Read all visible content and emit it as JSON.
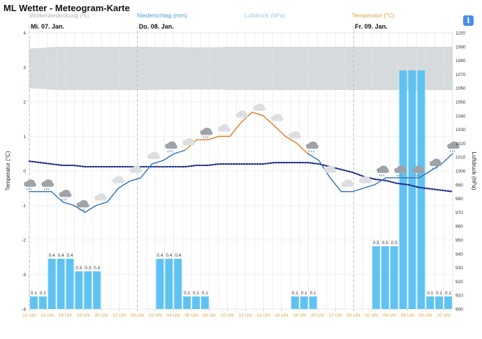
{
  "title": "ML Wetter - Meteogram-Karte",
  "info_icon": "i",
  "legend": {
    "cloud": {
      "label": "Wolkenbedeckung (%)",
      "color": "#c7cdd2"
    },
    "precip": {
      "label": "Niederschlag (mm)",
      "color": "#4a9fd9"
    },
    "pressure": {
      "label": "Luftdruck (hPa)",
      "color": "#9cc3e3"
    },
    "temp": {
      "label": "Temperatur (°C)",
      "color": "#e0a23a"
    }
  },
  "chart_data": {
    "type": "line",
    "days": [
      {
        "label": "Mi. 07. Jan.",
        "index": 0
      },
      {
        "label": "Do. 08. Jan.",
        "index": 12
      },
      {
        "label": "Fr. 09. Jan.",
        "index": 36
      }
    ],
    "x_ticks": [
      "12 Uhr",
      "14 Uhr",
      "16 Uhr",
      "18 Uhr",
      "20 Uhr",
      "22 Uhr",
      "00 Uhr",
      "02 Uhr",
      "04 Uhr",
      "06 Uhr",
      "08 Uhr",
      "10 Uhr",
      "12 Uhr",
      "14 Uhr",
      "16 Uhr",
      "18 Uhr",
      "20 Uhr",
      "22 Uhr",
      "00 Uhr",
      "02 Uhr",
      "04 Uhr",
      "06 Uhr",
      "08 Uhr",
      "10 Uhr"
    ],
    "y_left": {
      "label": "Temperatur (°C)",
      "ticks": [
        -4,
        -3,
        -2,
        -1,
        0,
        1,
        2,
        3,
        4
      ],
      "ylim": [
        -4,
        4
      ]
    },
    "y_right": {
      "label": "Luftdruck (hPa)",
      "ticks": [
        900,
        910,
        920,
        930,
        940,
        950,
        960,
        970,
        980,
        990,
        1000,
        1010,
        1020,
        1030,
        1040,
        1050,
        1060,
        1070,
        1080,
        1090,
        1100
      ],
      "ylim": [
        900,
        1100
      ]
    },
    "temperature": [
      -0.6,
      -0.6,
      -0.6,
      -0.9,
      -1.0,
      -1.2,
      -1.0,
      -0.9,
      -0.5,
      -0.3,
      -0.2,
      0.2,
      0.3,
      0.5,
      0.6,
      0.9,
      0.9,
      1.0,
      1.0,
      1.4,
      1.7,
      1.6,
      1.3,
      1.0,
      0.8,
      0.5,
      0.3,
      -0.2,
      -0.6,
      -0.6,
      -0.5,
      -0.4,
      -0.2,
      -0.2,
      -0.2,
      -0.2,
      0.0,
      0.2,
      0.5
    ],
    "pressure": [
      1007,
      1006,
      1005,
      1004,
      1004,
      1003,
      1003,
      1003,
      1003,
      1003,
      1003,
      1003,
      1003,
      1003,
      1003,
      1004,
      1004,
      1005,
      1005,
      1005,
      1005,
      1005,
      1006,
      1006,
      1006,
      1006,
      1005,
      1003,
      1001,
      999,
      996,
      994,
      993,
      991,
      990,
      988,
      987,
      986,
      985
    ],
    "precipitation": [
      0.1,
      0.1,
      0.4,
      0.4,
      0.4,
      0.3,
      0.3,
      0.3,
      0,
      0,
      0,
      0,
      0,
      0,
      0.4,
      0.4,
      0.4,
      0.1,
      0.1,
      0.1,
      0,
      0,
      0,
      0,
      0,
      0,
      0,
      0,
      0,
      0.1,
      0.1,
      0.1,
      0,
      0,
      0,
      0,
      0,
      0,
      0.5,
      0.5,
      0.5,
      1.9,
      1.9,
      1.9,
      0.1,
      0.1,
      0.1
    ],
    "precip_labels": [
      "0.1",
      "0.1",
      "0.4",
      "0.4",
      "0.4",
      "0.3",
      "0.3",
      "0.3",
      "",
      "",
      "",
      "",
      "",
      "",
      "0.4",
      "0.4",
      "0.4",
      "0.1",
      "0.1",
      "0.1",
      "",
      "",
      "",
      "",
      "",
      "",
      "",
      "",
      "",
      "0.1",
      "0.1",
      "0.1",
      "",
      "",
      "",
      "",
      "",
      "",
      "0.5",
      "0.5",
      "0.5",
      "",
      "",
      "",
      "0.1",
      "0.1",
      "0.1"
    ],
    "cloud_cover": [
      80,
      82,
      85,
      86,
      86,
      86,
      86,
      86,
      86,
      86,
      86,
      86,
      86,
      86,
      85,
      85,
      85,
      84,
      84,
      84,
      84,
      85,
      86,
      86,
      86,
      86,
      86,
      86,
      86,
      86,
      86,
      86,
      86,
      86,
      86,
      86,
      86,
      86,
      86,
      86,
      86,
      86,
      86,
      86,
      86,
      86,
      86
    ],
    "weather_icons": [
      "cloud-rain",
      "cloud-rain",
      "cloud-rain",
      "cloud-rain",
      "cloud",
      "cloud",
      "cloud",
      "cloud",
      "cloud-rain",
      "cloud",
      "cloud-rain",
      "cloud",
      "cloud",
      "cloud",
      "cloud",
      "cloud",
      "cloud-rain",
      "cloud",
      "cloud",
      "cloud",
      "cloud-rain",
      "cloud-rain",
      "cloud-rain",
      "cloud-rain",
      "cloud-rain"
    ],
    "grid": true
  }
}
